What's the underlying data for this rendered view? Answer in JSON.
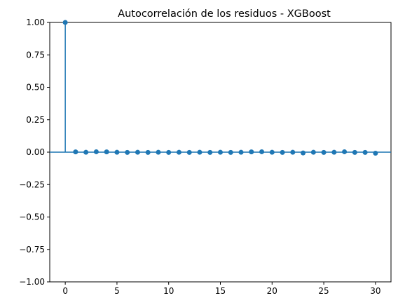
{
  "chart_data": {
    "type": "stem",
    "title": "Autocorrelación de los residuos - XGBoost",
    "xlabel": "",
    "ylabel": "",
    "xlim": [
      -1.5,
      31.5
    ],
    "ylim": [
      -1.0,
      1.0
    ],
    "x_ticks": [
      0,
      5,
      10,
      15,
      20,
      25,
      30
    ],
    "y_ticks": [
      1.0,
      0.75,
      0.5,
      0.25,
      0.0,
      -0.25,
      -0.5,
      -0.75,
      -1.0
    ],
    "y_tick_labels": [
      "1.00",
      "0.75",
      "0.50",
      "0.25",
      "0.00",
      "−0.25",
      "−0.50",
      "−0.75",
      "−1.00"
    ],
    "grid": false,
    "color": "#1f77b4",
    "lags": [
      0,
      1,
      2,
      3,
      4,
      5,
      6,
      7,
      8,
      9,
      10,
      11,
      12,
      13,
      14,
      15,
      16,
      17,
      18,
      19,
      20,
      21,
      22,
      23,
      24,
      25,
      26,
      27,
      28,
      29,
      30
    ],
    "values": [
      1.0,
      0.002,
      -0.001,
      0.003,
      0.002,
      -0.001,
      -0.002,
      -0.001,
      -0.002,
      -0.001,
      -0.002,
      -0.001,
      -0.002,
      -0.001,
      -0.002,
      -0.001,
      -0.002,
      -0.001,
      0.002,
      0.003,
      -0.001,
      -0.002,
      -0.001,
      -0.006,
      -0.001,
      -0.002,
      -0.001,
      0.003,
      -0.002,
      -0.002,
      -0.008
    ]
  }
}
